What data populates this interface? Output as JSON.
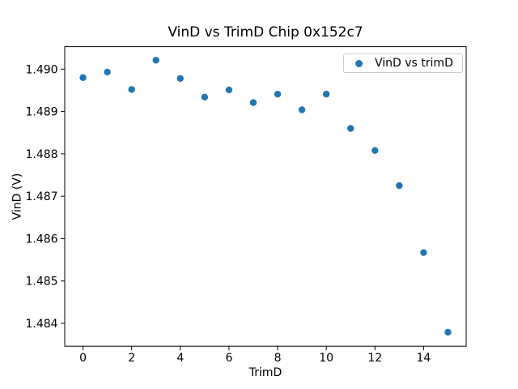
{
  "figure": {
    "background": "#ffffff",
    "text_color": "#000000",
    "spine_color": "#000000"
  },
  "chart_data": {
    "type": "scatter",
    "title": "VinD vs TrimD Chip 0x152c7",
    "xlabel": "TrimD",
    "ylabel": "VinD (V)",
    "legend_label": "VinD vs trimD",
    "legend_position": "upper right",
    "marker": "circle",
    "marker_color": "#1f77b4",
    "x": [
      0,
      1,
      2,
      3,
      4,
      5,
      6,
      7,
      8,
      9,
      10,
      11,
      12,
      13,
      14,
      15
    ],
    "y": [
      1.4898,
      1.48993,
      1.48952,
      1.49021,
      1.48978,
      1.48934,
      1.48951,
      1.48921,
      1.48941,
      1.48904,
      1.48941,
      1.4886,
      1.48808,
      1.48725,
      1.48567,
      1.48379
    ],
    "xlim": [
      -0.75,
      15.75
    ],
    "ylim": [
      1.48346,
      1.49053
    ],
    "xticks": [
      0,
      2,
      4,
      6,
      8,
      10,
      12,
      14
    ],
    "xtick_labels": [
      "0",
      "2",
      "4",
      "6",
      "8",
      "10",
      "12",
      "14"
    ],
    "yticks": [
      1.484,
      1.485,
      1.486,
      1.487,
      1.488,
      1.489,
      1.49
    ],
    "ytick_labels": [
      "1.484",
      "1.485",
      "1.486",
      "1.487",
      "1.488",
      "1.489",
      "1.490"
    ],
    "grid": false
  }
}
